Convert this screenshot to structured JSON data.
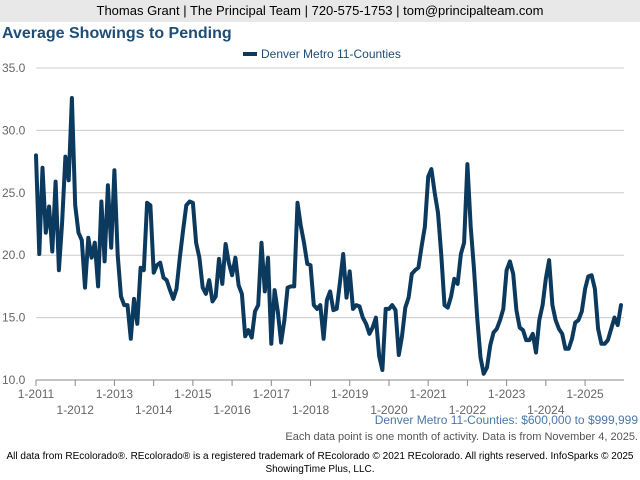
{
  "header": {
    "contact": "Thomas Grant | The Principal Team | 720-575-1753 | tom@principalteam.com"
  },
  "colors": {
    "line": "#0c3a5e",
    "grid": "#cccccc",
    "axis": "#888888",
    "title": "#1d4e77"
  },
  "chart_data": {
    "type": "line",
    "title": "Average Showings to Pending",
    "subtitle": "Denver Metro 11-Counties: $600,000 to $999,999",
    "note": "Each data point is one month of activity. Data is from November 4, 2025.",
    "legend": [
      "Denver Metro 11-Counties"
    ],
    "ylim": [
      10,
      35
    ],
    "yticks": [
      "10.0",
      "15.0",
      "20.0",
      "25.0",
      "30.0",
      "35.0"
    ],
    "x_start": "2011-01",
    "xticks_top": [
      "1-2011",
      "1-2013",
      "1-2015",
      "1-2017",
      "1-2019",
      "1-2021",
      "1-2023",
      "1-2025"
    ],
    "xticks_bottom": [
      "1-2012",
      "1-2014",
      "1-2016",
      "1-2018",
      "1-2020",
      "1-2022",
      "1-2024"
    ],
    "series": [
      {
        "name": "Denver Metro 11-Counties",
        "values": [
          28.0,
          20.1,
          27.0,
          21.8,
          23.9,
          20.3,
          25.9,
          18.8,
          22.6,
          27.9,
          26.0,
          32.6,
          24.0,
          21.8,
          21.2,
          17.4,
          21.4,
          19.8,
          21.0,
          17.5,
          24.3,
          19.5,
          25.6,
          20.6,
          26.8,
          20.0,
          16.7,
          16.0,
          16.0,
          13.3,
          16.5,
          14.5,
          19.0,
          18.8,
          24.2,
          24.0,
          18.6,
          19.2,
          19.4,
          18.2,
          18.0,
          17.2,
          16.5,
          17.3,
          19.8,
          22.0,
          24.0,
          24.3,
          24.2,
          21.0,
          19.8,
          17.4,
          16.9,
          18.0,
          16.3,
          16.7,
          19.7,
          17.7,
          20.9,
          19.4,
          18.4,
          19.8,
          17.6,
          16.9,
          13.5,
          14.0,
          13.4,
          15.5,
          16.0,
          21.0,
          17.1,
          19.8,
          12.9,
          17.2,
          15.5,
          13.0,
          14.8,
          17.4,
          17.5,
          17.5,
          24.2,
          22.4,
          21.0,
          19.3,
          19.2,
          16.0,
          15.7,
          16.0,
          13.3,
          16.4,
          17.1,
          15.6,
          15.7,
          17.8,
          20.1,
          16.6,
          18.7,
          15.7,
          16.0,
          15.9,
          15.0,
          14.5,
          13.7,
          14.2,
          15.0,
          11.9,
          10.8,
          15.7,
          15.7,
          16.0,
          15.6,
          12.0,
          13.5,
          15.8,
          16.6,
          18.5,
          18.8,
          19.0,
          20.7,
          22.3,
          26.3,
          26.9,
          25.0,
          23.4,
          20.0,
          16.0,
          15.8,
          16.7,
          18.1,
          17.7,
          20.1,
          21.0,
          27.3,
          22.3,
          19.0,
          15.0,
          11.8,
          10.5,
          11.0,
          12.8,
          13.8,
          14.1,
          14.8,
          15.7,
          18.8,
          19.5,
          18.5,
          15.6,
          14.2,
          14.0,
          13.2,
          13.2,
          13.7,
          12.2,
          14.8,
          16.0,
          18.1,
          19.6,
          16.0,
          14.8,
          14.1,
          13.7,
          12.5,
          12.5,
          13.3,
          14.6,
          14.8,
          15.5,
          17.3,
          18.3,
          18.4,
          17.3,
          14.1,
          12.9,
          12.9,
          13.2,
          14.1,
          15.0,
          14.4,
          16.0
        ]
      }
    ]
  },
  "footer": {
    "line1": "All data from REcolorado®. REcolorado® is a registered trademark of REcolorado © 2021 REcolorado. All rights reserved. InfoSparks © 2025",
    "line2": "ShowingTime Plus, LLC."
  }
}
